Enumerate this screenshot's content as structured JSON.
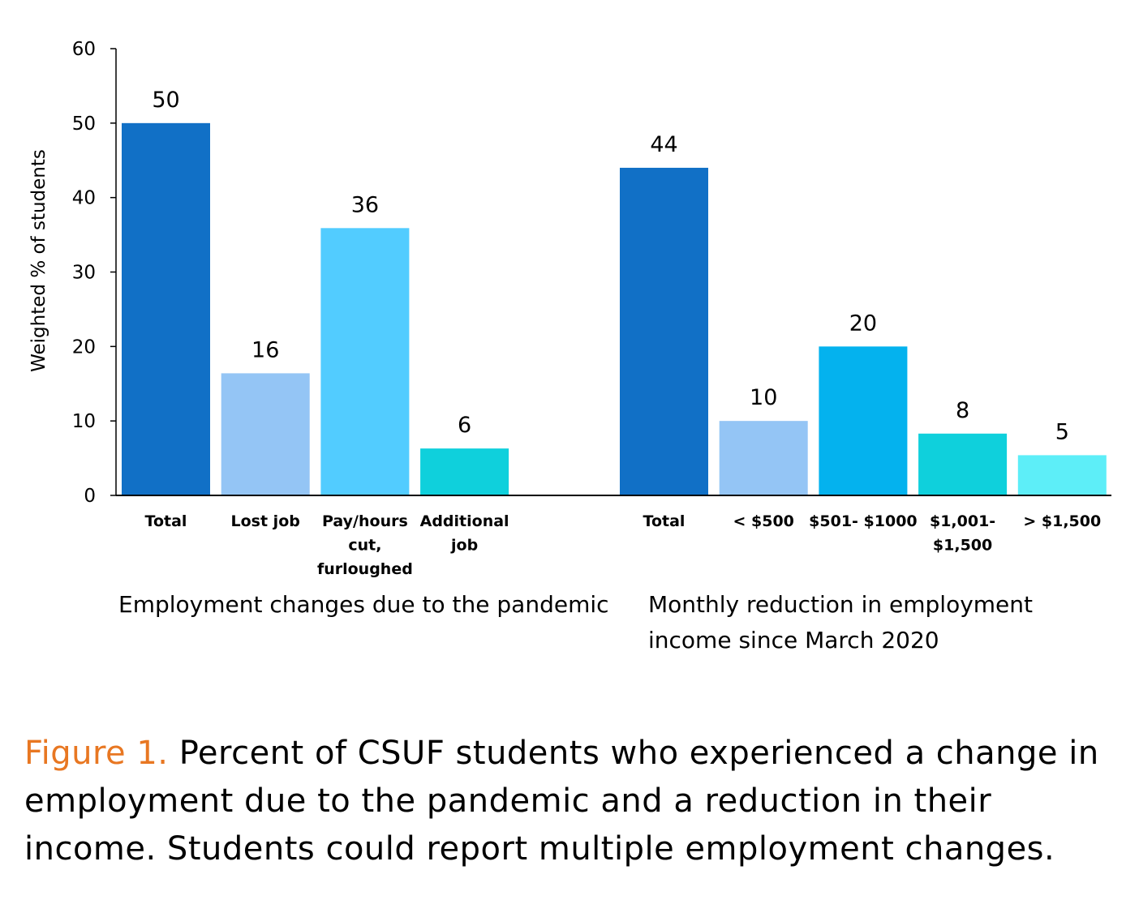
{
  "chart_data": {
    "type": "bar",
    "ylabel": "Weighted % of students",
    "ylim": [
      0,
      60
    ],
    "yticks": [
      0,
      10,
      20,
      30,
      40,
      50,
      60
    ],
    "grid": false,
    "groups": [
      {
        "label": "Employment changes due to the pandemic",
        "label_lines": [
          "Employment changes due to the pandemic"
        ],
        "bars": [
          {
            "category": "Total",
            "category_lines": [
              "Total"
            ],
            "value": 50,
            "label": "50",
            "color": "#1170c6"
          },
          {
            "category": "Lost job",
            "category_lines": [
              "Lost job"
            ],
            "value": 16.4,
            "label": "16",
            "color": "#94c5f5"
          },
          {
            "category": "Pay/hours cut, furloughed",
            "category_lines": [
              "Pay/hours",
              "cut,",
              "furloughed"
            ],
            "value": 35.9,
            "label": "36",
            "color": "#52ccff"
          },
          {
            "category": "Additional job",
            "category_lines": [
              "Additional",
              "job"
            ],
            "value": 6.3,
            "label": "6",
            "color": "#0fd0dc"
          }
        ]
      },
      {
        "label": "Monthly reduction in employment income since March 2020",
        "label_lines": [
          "Monthly reduction in employment",
          "income since March 2020"
        ],
        "bars": [
          {
            "category": "Total",
            "category_lines": [
              "Total"
            ],
            "value": 44,
            "label": "44",
            "color": "#1170c6"
          },
          {
            "category": "< $500",
            "category_lines": [
              "< $500"
            ],
            "value": 10,
            "label": "10",
            "color": "#94c5f5"
          },
          {
            "category": "$501- $1000",
            "category_lines": [
              "$501- $1000"
            ],
            "value": 20,
            "label": "20",
            "color": "#04b2ee"
          },
          {
            "category": "$1,001- $1,500",
            "category_lines": [
              "$1,001-",
              "$1,500"
            ],
            "value": 8.3,
            "label": "8",
            "color": "#0fd0dc"
          },
          {
            "category": "> $1,500",
            "category_lines": [
              "> $1,500"
            ],
            "value": 5.4,
            "label": "5",
            "color": "#5deef8"
          }
        ]
      }
    ]
  },
  "caption": {
    "figure_number": "Figure 1.",
    "text": " Percent of CSUF students who experienced a change in employment due to the pandemic and a reduction in their income. Students could report multiple employment changes."
  }
}
